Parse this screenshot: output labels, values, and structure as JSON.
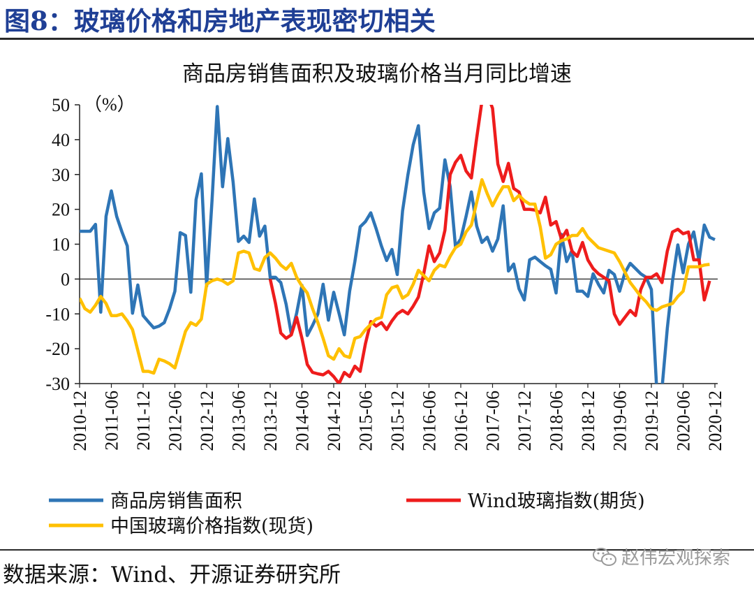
{
  "figure": {
    "title": "图8：玻璃价格和房地产表现密切相关",
    "source": "数据来源：Wind、开源证券研究所",
    "watermark": "赵伟宏观探索"
  },
  "chart_data": {
    "type": "line",
    "title": "商品房销售面积及玻璃价格当月同比增速",
    "ylabel": "（%）",
    "ylim": [
      -30,
      50
    ],
    "yticks": [
      50,
      40,
      30,
      20,
      10,
      0,
      -10,
      -20,
      -30
    ],
    "grid": false,
    "legend_position": "bottom",
    "x_tick_labels": [
      "2010-12",
      "2011-06",
      "2011-12",
      "2012-06",
      "2012-12",
      "2013-06",
      "2013-12",
      "2014-06",
      "2014-12",
      "2015-06",
      "2015-12",
      "2016-06",
      "2016-12",
      "2017-06",
      "2017-12",
      "2018-06",
      "2018-12",
      "2019-06",
      "2019-12",
      "2020-06",
      "2020-12"
    ],
    "x_start": "2010-12",
    "series": [
      {
        "name": "商品房销售面积",
        "color": "#2e75b6",
        "start": "2010-12",
        "values": [
          13.7,
          13.7,
          13.7,
          15.7,
          -9.5,
          18,
          25.3,
          18,
          13.5,
          9.5,
          -9.8,
          -1.7,
          -10.5,
          -12.3,
          -14,
          -13.5,
          -12.5,
          -8.5,
          -3.5,
          13.3,
          12.5,
          -3.8,
          22.8,
          30.2,
          -2,
          22.2,
          49.5,
          26.5,
          40.3,
          27.8,
          10.8,
          12.3,
          10.5,
          23,
          12.3,
          15.2,
          0.5,
          0.5,
          -1,
          -7.2,
          -15.8,
          -9.8,
          -1.8,
          -16.2,
          -13.3,
          -10,
          -1.5,
          -11.8,
          -3.8,
          -9.8,
          -16,
          -3.5,
          5,
          15,
          16.5,
          19,
          14.5,
          9.5,
          5.3,
          8.5,
          1.3,
          19.5,
          29.8,
          38.5,
          44,
          25,
          14.5,
          19,
          20.3,
          34.2,
          26.5,
          9.3,
          11.5,
          18,
          25,
          15.2,
          10.5,
          12,
          8,
          11.5,
          21,
          2.3,
          4.3,
          -2.8,
          -6,
          5.5,
          6.3,
          5,
          3.8,
          2.8,
          -4,
          12.8,
          5,
          8.2,
          -3.5,
          -3.5,
          -5,
          1.5,
          -1.5,
          -4,
          2.5,
          1.3,
          -3.5,
          1.8,
          4.5,
          3,
          1.5,
          0.5,
          -3,
          -31.5,
          -31.5,
          -14.2,
          -0.5,
          9.8,
          1.8,
          10,
          13.5,
          5.2,
          15.5,
          12,
          11.3
        ]
      },
      {
        "name": "Wind玻璃指数(期货)",
        "color": "#ee1c1c",
        "start": "2013-12",
        "values": [
          0,
          -7,
          -15.5,
          -17,
          -16,
          -11,
          -17,
          -24.5,
          -26.8,
          -27.2,
          -27.5,
          -26.5,
          -28,
          -30,
          -26.8,
          -28,
          -25,
          -26.5,
          -18.5,
          -12.2,
          -13.5,
          -12.5,
          -14.5,
          -12,
          -10,
          -9,
          -10,
          -7.8,
          -5.2,
          1.5,
          9.5,
          5,
          7.5,
          14,
          30,
          33.5,
          35.5,
          31,
          29,
          40.5,
          51,
          53,
          49,
          33,
          28,
          33.2,
          26,
          25,
          20,
          20,
          19.8,
          19,
          23.5,
          15.5,
          16.5,
          11.5,
          14,
          8,
          6.5,
          10.5,
          5.5,
          3,
          1.5,
          0.5,
          -0.5,
          -10,
          -13,
          -11,
          -9,
          -10.5,
          -3,
          0.5,
          0.5,
          1.5,
          -1,
          8,
          13.5,
          14.3,
          13,
          13.5,
          5.5,
          5.5,
          -6,
          -0.5
        ]
      },
      {
        "name": "中国玻璃价格指数(现货)",
        "color": "#ffc000",
        "start": "2010-12",
        "values": [
          -5.5,
          -8.5,
          -9.5,
          -7.5,
          -5,
          -7,
          -10.5,
          -10.5,
          -10,
          -12,
          -14.5,
          -20.5,
          -26.5,
          -26.5,
          -27,
          -23,
          -23.5,
          -24.3,
          -25.5,
          -20.3,
          -15,
          -12.5,
          -13.3,
          -11.5,
          -1.5,
          -0.5,
          0,
          -0.5,
          -1.5,
          -0.5,
          7.5,
          8,
          7.5,
          3,
          2.5,
          6.2,
          7.5,
          6,
          4,
          2.8,
          4.5,
          0.5,
          -2,
          -4,
          -8.5,
          -12.5,
          -17,
          -22,
          -23,
          -20,
          -22,
          -22.5,
          -17,
          -16.5,
          -14.5,
          -13,
          -11.5,
          -11,
          -4.5,
          -2.5,
          -2,
          -5.5,
          -4.5,
          -1.5,
          2.5,
          1,
          -0.5,
          2.5,
          4,
          3.5,
          6.5,
          9,
          10,
          13.5,
          15.5,
          22,
          28.5,
          24.5,
          21,
          24,
          26.5,
          26.5,
          22.5,
          24,
          22.5,
          21.5,
          21.5,
          15,
          6,
          7,
          10,
          11,
          11.5,
          12.5,
          12.5,
          14.5,
          12,
          10.5,
          9,
          8.5,
          8,
          7.5,
          5,
          2,
          -1,
          -3,
          -5,
          -6.5,
          -8.5,
          -9,
          -8,
          -7.5,
          -7,
          -5,
          -3.5,
          3.5,
          3.5,
          3.5,
          4,
          4.2
        ]
      }
    ]
  }
}
